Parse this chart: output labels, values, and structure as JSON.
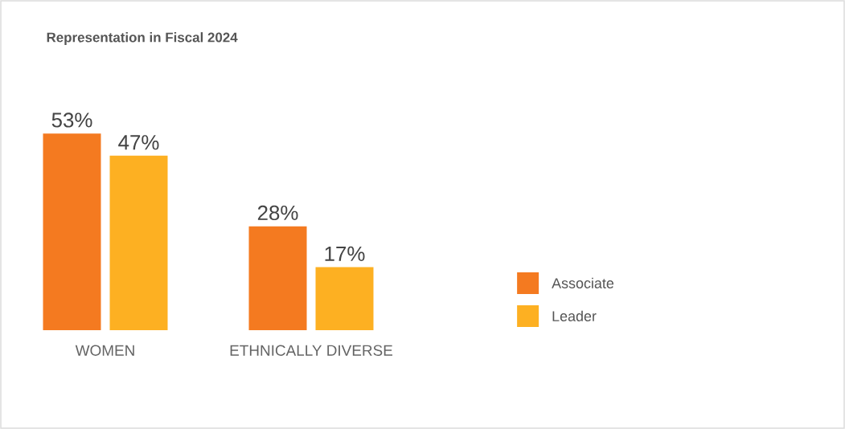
{
  "chart_data": {
    "type": "bar",
    "title": "Representation in Fiscal 2024",
    "categories": [
      "WOMEN",
      "ETHNICALLY DIVERSE"
    ],
    "series": [
      {
        "name": "Associate",
        "color": "#f47a20",
        "values": [
          53,
          28
        ],
        "value_labels": [
          "53%",
          "28%"
        ]
      },
      {
        "name": "Leader",
        "color": "#fdb022",
        "values": [
          47,
          17
        ],
        "value_labels": [
          "47%",
          "17%"
        ]
      }
    ],
    "legend": "right"
  }
}
